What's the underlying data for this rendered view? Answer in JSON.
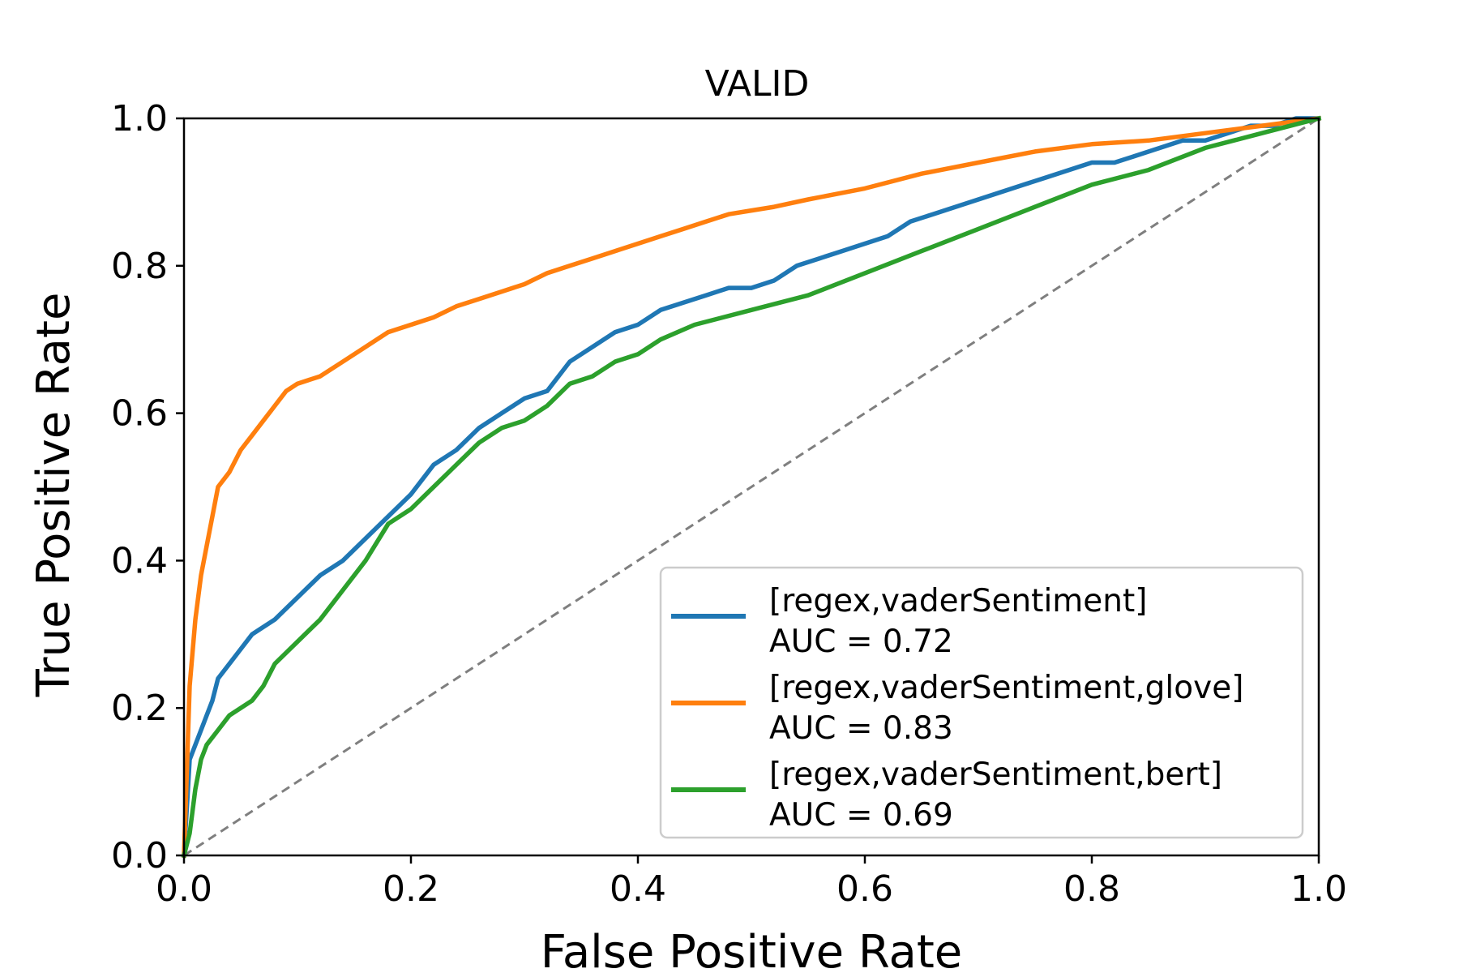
{
  "chart_data": {
    "type": "line",
    "title": "VALID",
    "xlabel": "False Positive Rate",
    "ylabel": "True Positive Rate",
    "xlim": [
      0.0,
      1.0
    ],
    "ylim": [
      0.0,
      1.0
    ],
    "xticks": [
      "0.0",
      "0.2",
      "0.4",
      "0.6",
      "0.8",
      "1.0"
    ],
    "yticks": [
      "0.0",
      "0.2",
      "0.4",
      "0.6",
      "0.8",
      "1.0"
    ],
    "grid": false,
    "legend_position": "lower-right",
    "series": [
      {
        "name": "[regex,vaderSentiment]",
        "auc_label": "AUC = 0.72",
        "color": "#1f77b4",
        "x": [
          0.0,
          0.005,
          0.01,
          0.02,
          0.025,
          0.03,
          0.04,
          0.05,
          0.06,
          0.07,
          0.08,
          0.1,
          0.12,
          0.14,
          0.16,
          0.2,
          0.22,
          0.24,
          0.26,
          0.28,
          0.3,
          0.32,
          0.34,
          0.36,
          0.38,
          0.4,
          0.42,
          0.44,
          0.46,
          0.48,
          0.5,
          0.52,
          0.54,
          0.56,
          0.58,
          0.6,
          0.62,
          0.64,
          0.66,
          0.68,
          0.7,
          0.72,
          0.74,
          0.76,
          0.78,
          0.8,
          0.82,
          0.84,
          0.86,
          0.88,
          0.9,
          0.92,
          0.94,
          0.96,
          0.98,
          1.0
        ],
        "y": [
          0.0,
          0.13,
          0.15,
          0.19,
          0.21,
          0.24,
          0.26,
          0.28,
          0.3,
          0.31,
          0.32,
          0.35,
          0.38,
          0.4,
          0.43,
          0.49,
          0.53,
          0.55,
          0.58,
          0.6,
          0.62,
          0.63,
          0.67,
          0.69,
          0.71,
          0.72,
          0.74,
          0.75,
          0.76,
          0.77,
          0.77,
          0.78,
          0.8,
          0.81,
          0.82,
          0.83,
          0.84,
          0.86,
          0.87,
          0.88,
          0.89,
          0.9,
          0.91,
          0.92,
          0.93,
          0.94,
          0.94,
          0.95,
          0.96,
          0.97,
          0.97,
          0.98,
          0.99,
          0.99,
          1.0,
          1.0
        ]
      },
      {
        "name": "[regex,vaderSentiment,glove]",
        "auc_label": "AUC = 0.83",
        "color": "#ff7f0e",
        "x": [
          0.0,
          0.005,
          0.01,
          0.015,
          0.02,
          0.025,
          0.03,
          0.04,
          0.05,
          0.06,
          0.07,
          0.08,
          0.09,
          0.1,
          0.12,
          0.14,
          0.16,
          0.18,
          0.2,
          0.22,
          0.24,
          0.26,
          0.28,
          0.3,
          0.32,
          0.34,
          0.36,
          0.38,
          0.4,
          0.42,
          0.44,
          0.46,
          0.48,
          0.5,
          0.52,
          0.55,
          0.6,
          0.65,
          0.7,
          0.75,
          0.8,
          0.85,
          0.9,
          0.95,
          1.0
        ],
        "y": [
          0.0,
          0.23,
          0.32,
          0.38,
          0.42,
          0.46,
          0.5,
          0.52,
          0.55,
          0.57,
          0.59,
          0.61,
          0.63,
          0.64,
          0.65,
          0.67,
          0.69,
          0.71,
          0.72,
          0.73,
          0.745,
          0.755,
          0.765,
          0.775,
          0.79,
          0.8,
          0.81,
          0.82,
          0.83,
          0.84,
          0.85,
          0.86,
          0.87,
          0.875,
          0.88,
          0.89,
          0.905,
          0.925,
          0.94,
          0.955,
          0.965,
          0.97,
          0.98,
          0.99,
          1.0
        ]
      },
      {
        "name": "[regex,vaderSentiment,bert]",
        "auc_label": "AUC = 0.69",
        "color": "#2ca02c",
        "x": [
          0.0,
          0.005,
          0.01,
          0.015,
          0.02,
          0.03,
          0.04,
          0.06,
          0.07,
          0.08,
          0.1,
          0.12,
          0.14,
          0.16,
          0.18,
          0.2,
          0.22,
          0.24,
          0.26,
          0.28,
          0.3,
          0.32,
          0.34,
          0.36,
          0.38,
          0.4,
          0.42,
          0.45,
          0.5,
          0.55,
          0.6,
          0.65,
          0.7,
          0.75,
          0.8,
          0.85,
          0.9,
          0.95,
          1.0
        ],
        "y": [
          0.0,
          0.03,
          0.09,
          0.13,
          0.15,
          0.17,
          0.19,
          0.21,
          0.23,
          0.26,
          0.29,
          0.32,
          0.36,
          0.4,
          0.45,
          0.47,
          0.5,
          0.53,
          0.56,
          0.58,
          0.59,
          0.61,
          0.64,
          0.65,
          0.67,
          0.68,
          0.7,
          0.72,
          0.74,
          0.76,
          0.79,
          0.82,
          0.85,
          0.88,
          0.91,
          0.93,
          0.96,
          0.98,
          1.0
        ]
      }
    ],
    "reference_line": {
      "x": [
        0.0,
        1.0
      ],
      "y": [
        0.0,
        1.0
      ],
      "color": "#7f7f7f",
      "style": "dashed"
    }
  }
}
